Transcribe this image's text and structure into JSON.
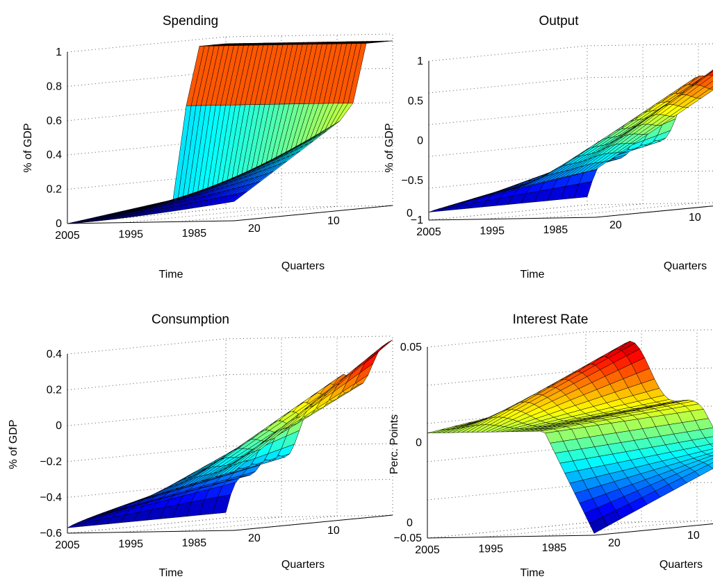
{
  "figure": {
    "colormap": "jet",
    "background": "#ffffff"
  },
  "chart_data": [
    {
      "type": "surface",
      "title": "Spending",
      "xlabel": "Time",
      "ylabel": "Quarters",
      "zlabel": "% of GDP",
      "time_ticks": [
        "2005",
        "1995",
        "1985"
      ],
      "quarter_ticks": [
        "0",
        "10",
        "20"
      ],
      "z_ticks": [
        "0",
        "0.2",
        "0.4",
        "0.6",
        "0.8",
        "1"
      ],
      "zlim": [
        -0.05,
        1.05
      ],
      "grid": true
    },
    {
      "type": "surface",
      "title": "Output",
      "xlabel": "Time",
      "ylabel": "Quarters",
      "zlabel": "% of GDP",
      "time_ticks": [
        "2005",
        "1995",
        "1985"
      ],
      "quarter_ticks": [
        "0",
        "10",
        "20"
      ],
      "z_ticks": [
        "−1",
        "−0.5",
        "0",
        "0.5",
        "1"
      ],
      "zlim": [
        -1.2,
        1.2
      ],
      "grid": true
    },
    {
      "type": "surface",
      "title": "Consumption",
      "xlabel": "Time",
      "ylabel": "Quarters",
      "zlabel": "% of GDP",
      "time_ticks": [
        "2005",
        "1995",
        "1985"
      ],
      "quarter_ticks": [
        "0",
        "10",
        "20"
      ],
      "z_ticks": [
        "−0.6",
        "−0.4",
        "−0.2",
        "0",
        "0.2",
        "0.4"
      ],
      "zlim": [
        -0.62,
        0.52
      ],
      "grid": true
    },
    {
      "type": "surface",
      "title": "Interest Rate",
      "xlabel": "Time",
      "ylabel": "Quarters",
      "zlabel": "Perc. Points",
      "time_ticks": [
        "2005",
        "1995",
        "1985"
      ],
      "quarter_ticks": [
        "0",
        "10",
        "20"
      ],
      "z_ticks": [
        "−0.05",
        "0",
        "0.05"
      ],
      "zlim": [
        -0.07,
        0.09
      ],
      "grid": true
    }
  ]
}
